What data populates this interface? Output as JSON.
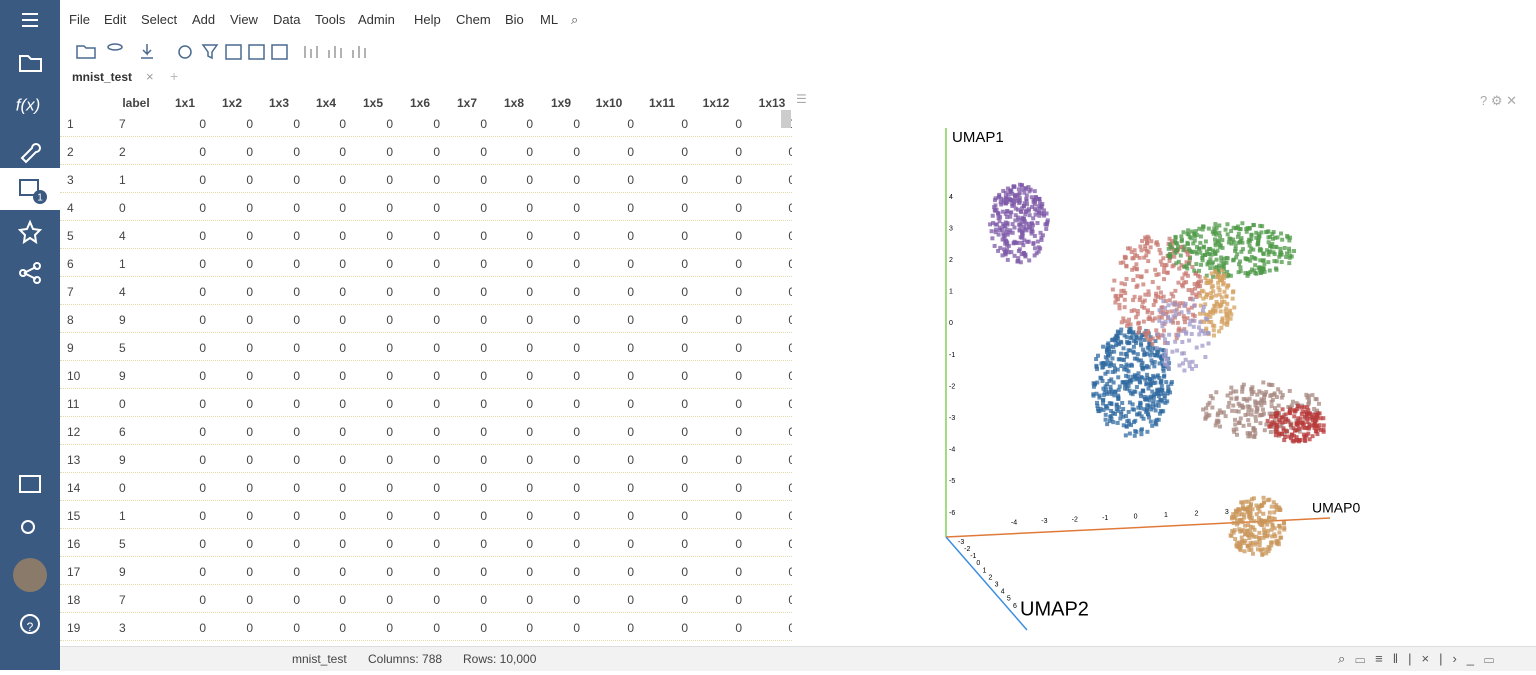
{
  "menu": [
    "File",
    "Edit",
    "Select",
    "Add",
    "View",
    "Data",
    "Tools",
    "Admin",
    "Help",
    "Chem",
    "Bio",
    "ML"
  ],
  "sidebar_badge": "1",
  "tab": "mnist_test",
  "table": {
    "columns": [
      "label",
      "1x1",
      "1x2",
      "1x3",
      "1x4",
      "1x5",
      "1x6",
      "1x7",
      "1x8",
      "1x9",
      "1x10",
      "1x11",
      "1x12",
      "1x13"
    ],
    "rows": [
      [
        1,
        7,
        0,
        0,
        0,
        0,
        0,
        0,
        0,
        0,
        0,
        0,
        0,
        0,
        0
      ],
      [
        2,
        2,
        0,
        0,
        0,
        0,
        0,
        0,
        0,
        0,
        0,
        0,
        0,
        0,
        0
      ],
      [
        3,
        1,
        0,
        0,
        0,
        0,
        0,
        0,
        0,
        0,
        0,
        0,
        0,
        0,
        0
      ],
      [
        4,
        0,
        0,
        0,
        0,
        0,
        0,
        0,
        0,
        0,
        0,
        0,
        0,
        0,
        0
      ],
      [
        5,
        4,
        0,
        0,
        0,
        0,
        0,
        0,
        0,
        0,
        0,
        0,
        0,
        0,
        0
      ],
      [
        6,
        1,
        0,
        0,
        0,
        0,
        0,
        0,
        0,
        0,
        0,
        0,
        0,
        0,
        0
      ],
      [
        7,
        4,
        0,
        0,
        0,
        0,
        0,
        0,
        0,
        0,
        0,
        0,
        0,
        0,
        0
      ],
      [
        8,
        9,
        0,
        0,
        0,
        0,
        0,
        0,
        0,
        0,
        0,
        0,
        0,
        0,
        0
      ],
      [
        9,
        5,
        0,
        0,
        0,
        0,
        0,
        0,
        0,
        0,
        0,
        0,
        0,
        0,
        0
      ],
      [
        10,
        9,
        0,
        0,
        0,
        0,
        0,
        0,
        0,
        0,
        0,
        0,
        0,
        0,
        0
      ],
      [
        11,
        0,
        0,
        0,
        0,
        0,
        0,
        0,
        0,
        0,
        0,
        0,
        0,
        0,
        0
      ],
      [
        12,
        6,
        0,
        0,
        0,
        0,
        0,
        0,
        0,
        0,
        0,
        0,
        0,
        0,
        0
      ],
      [
        13,
        9,
        0,
        0,
        0,
        0,
        0,
        0,
        0,
        0,
        0,
        0,
        0,
        0,
        0
      ],
      [
        14,
        0,
        0,
        0,
        0,
        0,
        0,
        0,
        0,
        0,
        0,
        0,
        0,
        0,
        0
      ],
      [
        15,
        1,
        0,
        0,
        0,
        0,
        0,
        0,
        0,
        0,
        0,
        0,
        0,
        0,
        0
      ],
      [
        16,
        5,
        0,
        0,
        0,
        0,
        0,
        0,
        0,
        0,
        0,
        0,
        0,
        0,
        0
      ],
      [
        17,
        9,
        0,
        0,
        0,
        0,
        0,
        0,
        0,
        0,
        0,
        0,
        0,
        0,
        0
      ],
      [
        18,
        7,
        0,
        0,
        0,
        0,
        0,
        0,
        0,
        0,
        0,
        0,
        0,
        0,
        0
      ],
      [
        19,
        3,
        0,
        0,
        0,
        0,
        0,
        0,
        0,
        0,
        0,
        0,
        0,
        0,
        0
      ]
    ]
  },
  "viewer": {
    "y_axis": "UMAP1",
    "x_axis": "UMAP0",
    "z_axis": "UMAP2",
    "yticks": [
      4,
      3,
      2,
      1,
      0,
      -1,
      -2,
      -3,
      -4,
      -5,
      -6
    ],
    "xticks": [
      -4,
      -3,
      -2,
      -1,
      0,
      1,
      2,
      3
    ],
    "zticks": [
      -3,
      -2,
      -1,
      0,
      1,
      2,
      3,
      4,
      5,
      6
    ]
  },
  "status": {
    "table": "mnist_test",
    "columns": "Columns: 788",
    "rows": "Rows: 10,000"
  }
}
